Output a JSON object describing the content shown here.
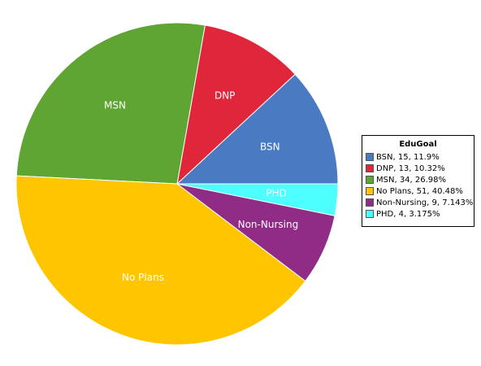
{
  "chart_data": {
    "type": "pie",
    "title": "",
    "legend": {
      "title": "EduGoal",
      "placement": "right"
    },
    "start_angle_deg": 0,
    "direction": "counterclockwise",
    "slices": [
      {
        "label": "BSN",
        "value": 15,
        "percent": "11.9%",
        "legend": "BSN, 15, 11.9%",
        "color": "#4a7ac1"
      },
      {
        "label": "DNP",
        "value": 13,
        "percent": "10.32%",
        "legend": "DNP, 13, 10.32%",
        "color": "#e0263a"
      },
      {
        "label": "MSN",
        "value": 34,
        "percent": "26.98%",
        "legend": "MSN, 34, 26.98%",
        "color": "#5ea534"
      },
      {
        "label": "No Plans",
        "value": 51,
        "percent": "40.48%",
        "legend": "No Plans, 51, 40.48%",
        "color": "#ffc500"
      },
      {
        "label": "Non-Nursing",
        "value": 9,
        "percent": "7.143%",
        "legend": "Non-Nursing, 9, 7.143%",
        "color": "#902c86"
      },
      {
        "label": "PHD",
        "value": 4,
        "percent": "3.175%",
        "legend": "PHD, 4, 3.175%",
        "color": "#4dffff"
      }
    ]
  }
}
